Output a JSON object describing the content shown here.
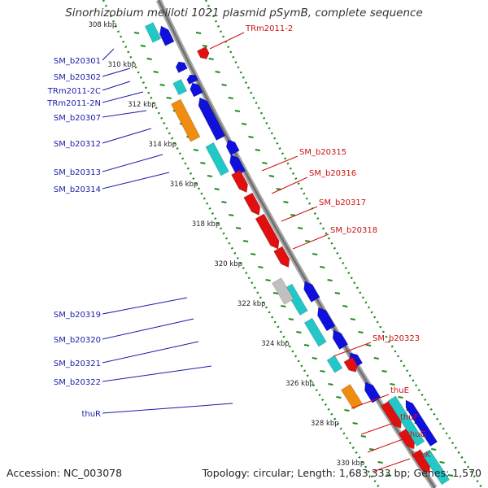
{
  "title": "Sinorhizobium meliloti 1021 plasmid pSymB, complete sequence",
  "footer": {
    "accession": "Accession: NC_003078",
    "topology": "Topology: circular; Length: 1,683,333 bp; Genes: 1,570"
  },
  "ticks": [
    "308 kbp",
    "310 kbp",
    "312 kbp",
    "314 kbp",
    "316 kbp",
    "318 kbp",
    "320 kbp",
    "322 kbp",
    "324 kbp",
    "326 kbp",
    "328 kbp",
    "330 kbp"
  ],
  "left_genes": [
    "SM_b20301",
    "SM_b20302",
    "TRm2011-2C",
    "TRm2011-2N",
    "SM_b20307",
    "SM_b20312",
    "SM_b20313",
    "SM_b20314",
    "SM_b20319",
    "SM_b20320",
    "SM_b20321",
    "SM_b20322",
    "thuR"
  ],
  "right_genes": [
    "TRm2011-2",
    "SM_b20315",
    "SM_b20316",
    "SM_b20317",
    "SM_b20318",
    "SM_b20323",
    "thuE",
    "thuF",
    "thuG",
    "thuK"
  ],
  "colors": {
    "forward_gene": "#1010dd",
    "reverse_gene": "#e01010",
    "cds_cyan": "#22c8c8",
    "orange": "#f08c10",
    "gray_feature": "#c0c0c0",
    "backbone": "#888888",
    "dots": "#1e8c1e",
    "label_blue": "#1a1aaa",
    "label_red": "#cc1111"
  }
}
